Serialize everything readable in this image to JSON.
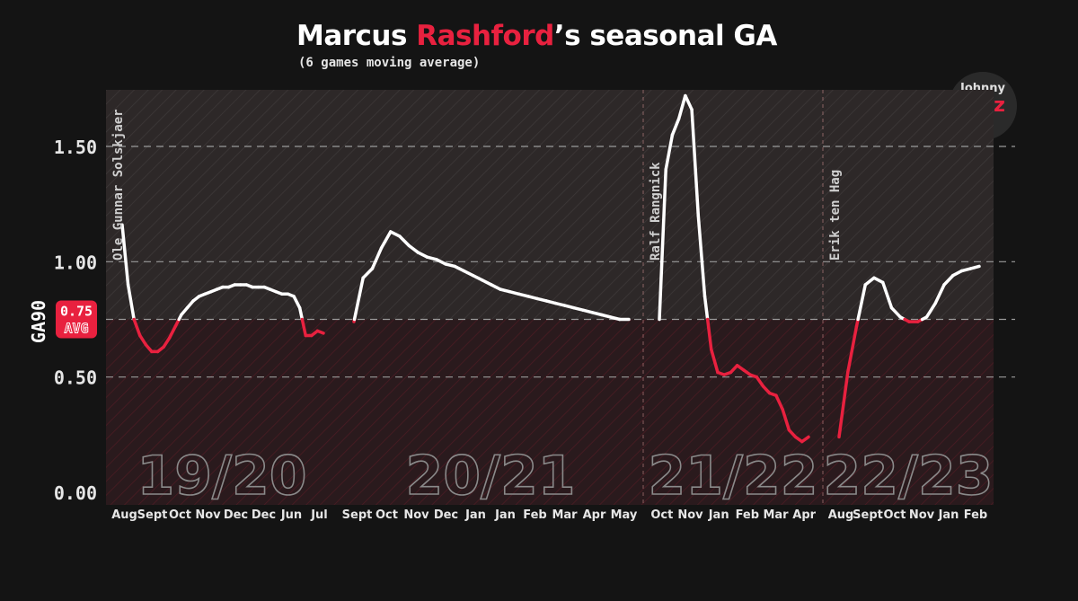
{
  "chart_data": {
    "type": "line",
    "title_prefix": "Marcus ",
    "title_accent": "Rashford",
    "title_suffix": "’s seasonal GA",
    "subtitle": "(6 games moving average)",
    "ylabel": "GA90",
    "ylim": [
      0,
      1.75
    ],
    "yticks": [
      {
        "value": 0,
        "label": "0.00"
      },
      {
        "value": 0.5,
        "label": "0.50"
      },
      {
        "value": 1.0,
        "label": "1.00"
      },
      {
        "value": 1.5,
        "label": "1.50"
      }
    ],
    "average": {
      "value": 0.75,
      "value_label": "0.75",
      "label": "AVG"
    },
    "grid": "dashed horizontal",
    "colors": {
      "above_avg": "#ffffff",
      "below_avg": "#e8213f",
      "background": "#141414",
      "grid": "#a0a0a0"
    },
    "seasons": [
      {
        "label": "19/20",
        "manager": "Ole Gunnar Solskjaer",
        "months": [
          "Aug",
          "Sept",
          "Oct",
          "Nov",
          "Dec",
          "Dec",
          "Jun",
          "Jul"
        ],
        "values": [
          1.16,
          0.9,
          0.75,
          0.68,
          0.64,
          0.61,
          0.61,
          0.63,
          0.67,
          0.72,
          0.77,
          0.8,
          0.83,
          0.85,
          0.86,
          0.87,
          0.88,
          0.89,
          0.89,
          0.9,
          0.9,
          0.9,
          0.89,
          0.89,
          0.89,
          0.88,
          0.87,
          0.86,
          0.86,
          0.85,
          0.8,
          0.68,
          0.68,
          0.7,
          0.69
        ]
      },
      {
        "label": "20/21",
        "manager": "",
        "months": [
          "Sept",
          "Oct",
          "Nov",
          "Dec",
          "Jan",
          "Jan",
          "Feb",
          "Mar",
          "Apr",
          "May"
        ],
        "values": [
          0.74,
          0.93,
          0.97,
          1.06,
          1.13,
          1.11,
          1.07,
          1.04,
          1.02,
          1.01,
          0.99,
          0.98,
          0.96,
          0.94,
          0.92,
          0.9,
          0.88,
          0.87,
          0.86,
          0.85,
          0.84,
          0.83,
          0.82,
          0.81,
          0.8,
          0.79,
          0.78,
          0.77,
          0.76,
          0.75,
          0.75
        ]
      },
      {
        "label": "21/22",
        "manager": "Ralf Rangnick",
        "months": [
          "Oct",
          "Nov",
          "Jan",
          "Feb",
          "Mar",
          "Apr"
        ],
        "values": [
          0.75,
          1.4,
          1.55,
          1.62,
          1.72,
          1.66,
          1.2,
          0.85,
          0.62,
          0.52,
          0.51,
          0.52,
          0.55,
          0.53,
          0.51,
          0.5,
          0.46,
          0.43,
          0.42,
          0.36,
          0.27,
          0.24,
          0.22,
          0.24
        ]
      },
      {
        "label": "22/23",
        "manager": "Erik ten Hag",
        "months": [
          "Aug",
          "Sept",
          "Oct",
          "Nov",
          "Jan",
          "Feb"
        ],
        "values": [
          0.24,
          0.52,
          0.72,
          0.9,
          0.93,
          0.91,
          0.8,
          0.76,
          0.74,
          0.74,
          0.76,
          0.82,
          0.9,
          0.94,
          0.96,
          0.97,
          0.98
        ]
      }
    ]
  }
}
